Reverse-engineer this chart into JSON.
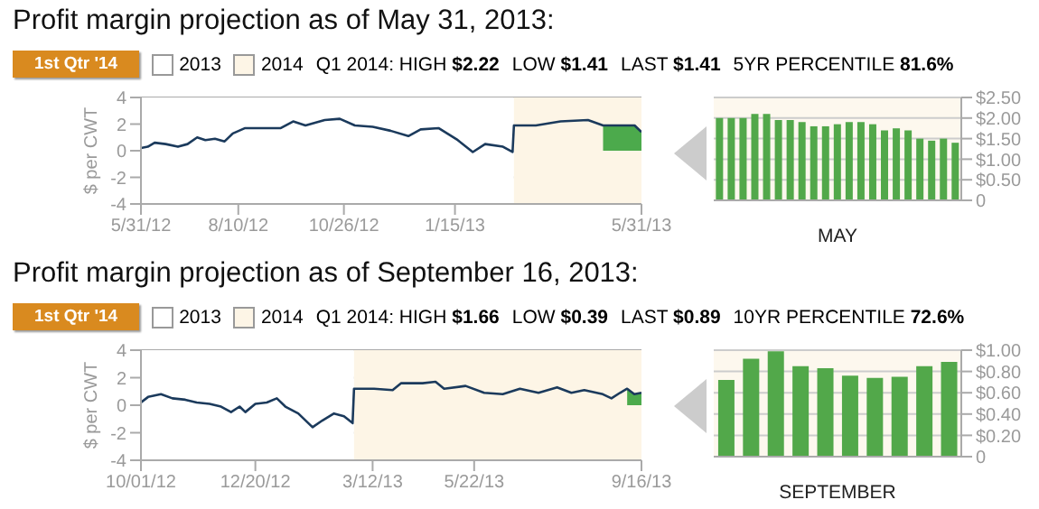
{
  "chart_data": [
    {
      "type": "line",
      "title": "Profit margin projection as of May 31, 2013:",
      "ylabel": "$ per CWT",
      "annotations": [
        "1st Qtr '14",
        "Q1 2014: HIGH $2.22",
        "LOW $1.41",
        "LAST $1.41",
        "5YR PERCENTILE 81.6%"
      ],
      "bands": [
        {
          "axis": "x",
          "from": "2012-05-31",
          "to": "2013-02-27",
          "label": "2013",
          "color": "#ffffff"
        },
        {
          "axis": "x",
          "from": "2013-02-27",
          "to": "2013-05-31",
          "label": "2014",
          "color": "#fdf5e6"
        }
      ],
      "series": [
        {
          "type": "line",
          "color": "#1b3a5c",
          "x": [
            "2012-05-31",
            "2012-06-05",
            "2012-06-10",
            "2012-06-18",
            "2012-06-27",
            "2012-07-04",
            "2012-07-11",
            "2012-07-17",
            "2012-07-24",
            "2012-07-31",
            "2012-08-06",
            "2012-08-15",
            "2012-08-28",
            "2012-09-10",
            "2012-09-19",
            "2012-09-28",
            "2012-10-12",
            "2012-10-23",
            "2012-11-03",
            "2012-11-16",
            "2012-11-29",
            "2012-12-12",
            "2012-12-21",
            "2013-01-03",
            "2013-01-17",
            "2013-01-28",
            "2013-02-06",
            "2013-02-19",
            "2013-02-26",
            "2013-02-27",
            "2013-03-15",
            "2013-04-02",
            "2013-04-22",
            "2013-05-03",
            "2013-05-17",
            "2013-05-26",
            "2013-05-31"
          ],
          "values": [
            0.2,
            0.3,
            0.6,
            0.5,
            0.3,
            0.5,
            1.0,
            0.8,
            0.9,
            0.7,
            1.3,
            1.7,
            1.7,
            1.7,
            2.2,
            1.9,
            2.3,
            2.4,
            1.9,
            1.8,
            1.5,
            1.1,
            1.6,
            1.7,
            0.8,
            -0.1,
            0.5,
            0.3,
            -0.1,
            1.9,
            1.9,
            2.2,
            2.3,
            1.9,
            1.9,
            1.9,
            1.4
          ]
        },
        {
          "type": "area",
          "color": "#4caa4c",
          "x": [
            "2013-05-03",
            "2013-05-17",
            "2013-05-26",
            "2013-05-31"
          ],
          "values": [
            1.9,
            1.9,
            1.9,
            1.4
          ]
        }
      ],
      "xlim": [
        "2012-05-31",
        "2013-05-31"
      ],
      "xticks": [
        {
          "value": "2012-05-31",
          "label": "5/31/12"
        },
        {
          "value": "2012-08-10",
          "label": "8/10/12"
        },
        {
          "value": "2012-10-26",
          "label": "10/26/12"
        },
        {
          "value": "2013-01-15",
          "label": "1/15/13"
        },
        {
          "value": "2013-05-31",
          "label": "5/31/13"
        }
      ],
      "ylim": [
        -4,
        4
      ],
      "yticks": [
        -4,
        -2,
        0,
        2,
        4
      ],
      "grid": "y"
    },
    {
      "type": "bar",
      "xlabel": "MAY",
      "color": "#52a84a",
      "categories": [
        null,
        null,
        null,
        null,
        null,
        null,
        null,
        null,
        null,
        null,
        null,
        null,
        null,
        null,
        null,
        null,
        null,
        null,
        null,
        null,
        null
      ],
      "values": [
        2.0,
        2.0,
        2.0,
        2.1,
        2.1,
        1.95,
        1.95,
        1.9,
        1.8,
        1.8,
        1.85,
        1.9,
        1.9,
        1.85,
        1.7,
        1.75,
        1.7,
        1.5,
        1.45,
        1.5,
        1.4
      ],
      "ylim": [
        0,
        2.5
      ],
      "yticks": [
        0,
        {
          "value": 0.5,
          "label": "$0.50"
        },
        {
          "value": 1,
          "label": "$1.00"
        },
        {
          "value": 1.5,
          "label": "$1.50"
        },
        {
          "value": 2,
          "label": "$2.00"
        },
        {
          "value": 2.5,
          "label": "$2.50"
        }
      ],
      "grid": "y"
    },
    {
      "type": "line",
      "title": "Profit margin projection as of September 16, 2013:",
      "ylabel": "$ per CWT",
      "annotations": [
        "1st Qtr '14",
        "Q1 2014: HIGH $1.66",
        "LOW $0.39",
        "LAST $0.89",
        "10YR PERCENTILE 72.6%"
      ],
      "bands": [
        {
          "axis": "x",
          "from": "2012-10-01",
          "to": "2013-02-27",
          "label": "2013",
          "color": "#ffffff"
        },
        {
          "axis": "x",
          "from": "2013-02-27",
          "to": "2013-09-16",
          "label": "2014",
          "color": "#fdf5e6"
        }
      ],
      "series": [
        {
          "type": "line",
          "color": "#1b3a5c",
          "x": [
            "2012-10-01",
            "2012-10-06",
            "2012-10-15",
            "2012-10-23",
            "2012-11-01",
            "2012-11-09",
            "2012-11-18",
            "2012-11-26",
            "2012-12-03",
            "2012-12-09",
            "2012-12-13",
            "2012-12-20",
            "2012-12-28",
            "2013-01-04",
            "2013-01-10",
            "2013-01-19",
            "2013-01-29",
            "2013-02-05",
            "2013-02-13",
            "2013-02-20",
            "2013-02-26",
            "2013-02-27",
            "2013-03-13",
            "2013-03-26",
            "2013-04-01",
            "2013-04-16",
            "2013-04-25",
            "2013-05-01",
            "2013-05-16",
            "2013-05-29",
            "2013-06-11",
            "2013-06-23",
            "2013-07-06",
            "2013-07-19",
            "2013-07-29",
            "2013-08-07",
            "2013-08-20",
            "2013-08-26",
            "2013-09-01",
            "2013-09-06",
            "2013-09-11",
            "2013-09-16"
          ],
          "values": [
            0.2,
            0.6,
            0.8,
            0.5,
            0.4,
            0.2,
            0.1,
            -0.1,
            -0.5,
            -0.1,
            -0.5,
            0.1,
            0.2,
            0.5,
            -0.1,
            -0.6,
            -1.6,
            -1.1,
            -0.6,
            -0.8,
            -1.3,
            1.2,
            1.2,
            1.1,
            1.6,
            1.6,
            1.7,
            1.2,
            1.4,
            0.9,
            0.8,
            1.2,
            0.9,
            1.3,
            0.9,
            1.1,
            0.8,
            0.5,
            0.9,
            1.2,
            0.8,
            0.9
          ]
        },
        {
          "type": "area",
          "color": "#4caa4c",
          "x": [
            "2013-09-06",
            "2013-09-11",
            "2013-09-16"
          ],
          "values": [
            1.2,
            0.8,
            0.9
          ]
        }
      ],
      "xlim": [
        "2012-10-01",
        "2013-09-16"
      ],
      "xticks": [
        {
          "value": "2012-10-01",
          "label": "10/01/12"
        },
        {
          "value": "2012-12-20",
          "label": "12/20/12"
        },
        {
          "value": "2013-03-12",
          "label": "3/12/13"
        },
        {
          "value": "2013-05-22",
          "label": "5/22/13"
        },
        {
          "value": "2013-09-16",
          "label": "9/16/13"
        }
      ],
      "ylim": [
        -4,
        4
      ],
      "yticks": [
        -4,
        -2,
        0,
        2,
        4
      ],
      "grid": "y"
    },
    {
      "type": "bar",
      "xlabel": "SEPTEMBER",
      "color": "#52a84a",
      "categories": [
        null,
        null,
        null,
        null,
        null,
        null,
        null,
        null,
        null,
        null
      ],
      "values": [
        0.72,
        0.92,
        0.99,
        0.85,
        0.83,
        0.76,
        0.74,
        0.75,
        0.85,
        0.89
      ],
      "ylim": [
        0,
        1
      ],
      "yticks": [
        0,
        {
          "value": 0.2,
          "label": "$0.20"
        },
        {
          "value": 0.4,
          "label": "$0.40"
        },
        {
          "value": 0.6,
          "label": "$0.60"
        },
        {
          "value": 0.8,
          "label": "$0.80"
        },
        {
          "value": 1,
          "label": "$1.00"
        }
      ],
      "grid": "y"
    }
  ]
}
